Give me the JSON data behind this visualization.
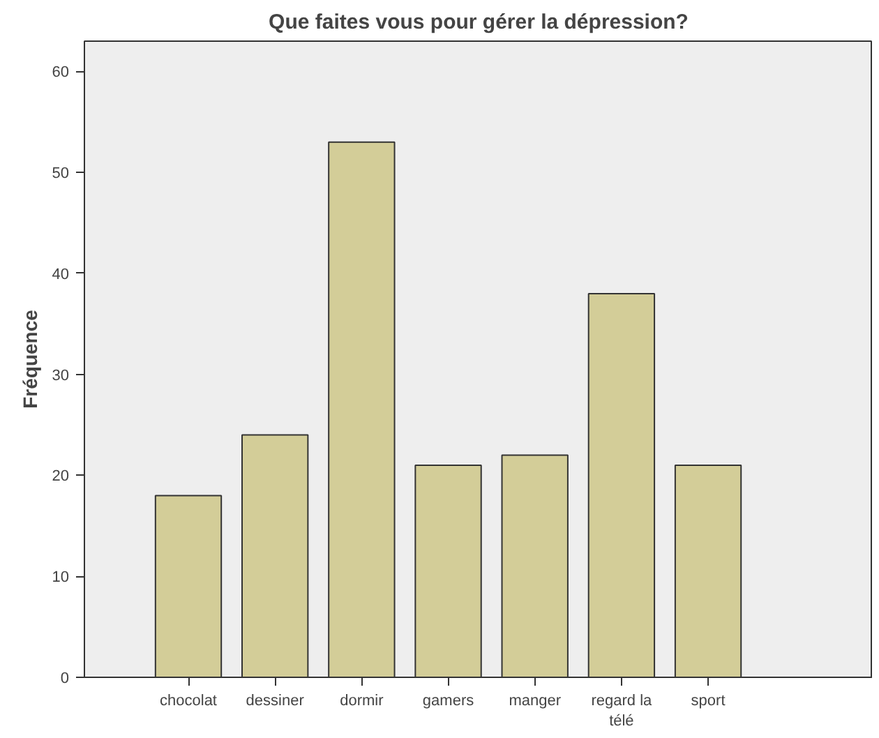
{
  "chart_data": {
    "type": "bar",
    "title": "Que faites vous pour gérer la dépression?",
    "ylabel": "Fréquence",
    "categories": [
      "chocolat",
      "dessiner",
      "dormir",
      "gamers",
      "manger",
      "regard la télé",
      "sport"
    ],
    "values": [
      18,
      24,
      53,
      21,
      22,
      38,
      21
    ],
    "color": "#d3cd98",
    "ylim": [
      0,
      63
    ],
    "yticks": [
      0,
      10,
      20,
      30,
      40,
      50,
      60
    ],
    "grid": false
  }
}
